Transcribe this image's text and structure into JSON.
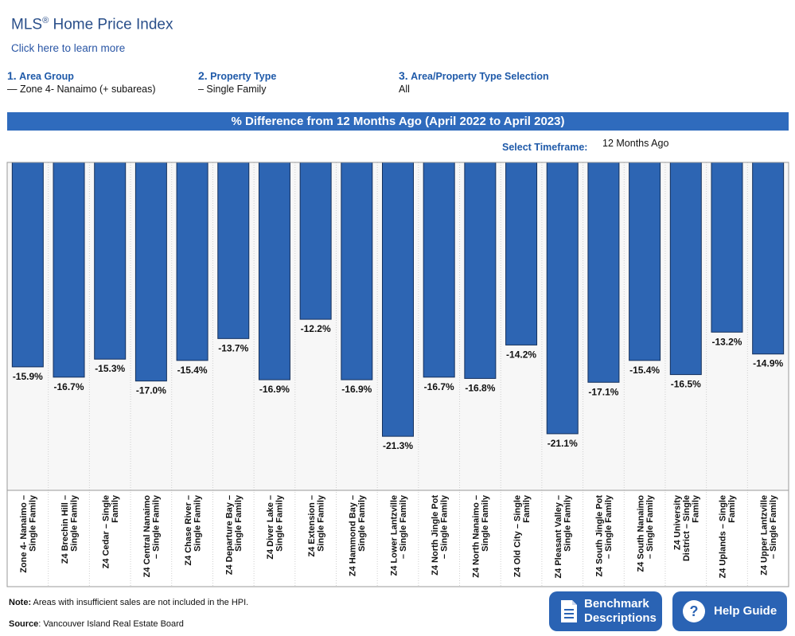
{
  "header": {
    "title": "MLS",
    "title_mark": "®",
    "title_rest": " Home Price Index",
    "learn_more": "Click here to learn more"
  },
  "selectors": [
    {
      "num": "1.",
      "label": "Area Group",
      "value": "— Zone 4- Nanaimo (+ subareas)"
    },
    {
      "num": "2.",
      "label": "Property Type",
      "value": "– Single Family"
    },
    {
      "num": "3.",
      "label": "Area/Property Type Selection",
      "value": "All"
    }
  ],
  "timeframe": {
    "label": "Select Timeframe:",
    "value": "12 Months Ago"
  },
  "footer": {
    "note_label": "Note:",
    "note_text": " Areas with insufficient sales are not included in the HPI.",
    "source_label": "Source",
    "source_text": ": Vancouver Island Real Estate Board"
  },
  "buttons": {
    "benchmark_line1": "Benchmark",
    "benchmark_line2": "Descriptions",
    "help": "Help Guide"
  },
  "colors": {
    "bar": "#2d65b3",
    "banner": "#2f6bbd",
    "accent": "#1f5aa9"
  },
  "icons": {
    "benchmark": "document-icon",
    "help": "question-circle-icon"
  },
  "chart_data": {
    "type": "bar",
    "title": "% Difference from 12 Months Ago (April 2022 to April 2023)",
    "ylim": [
      -25.5,
      0
    ],
    "categories": [
      [
        "Zone 4- Nanaimo –",
        "Single Family"
      ],
      [
        "Z4 Brechin Hill –",
        "Single Family"
      ],
      [
        "Z4 Cedar – Single",
        "Family"
      ],
      [
        "Z4 Central Nanaimo",
        "– Single Family"
      ],
      [
        "Z4 Chase River –",
        "Single Family"
      ],
      [
        "Z4 Departure Bay –",
        "Single Family"
      ],
      [
        "Z4 Diver Lake –",
        "Single Family"
      ],
      [
        "Z4 Extension –",
        "Single Family"
      ],
      [
        "Z4 Hammond Bay –",
        "Single Family"
      ],
      [
        "Z4 Lower Lantzville",
        "– Single Family"
      ],
      [
        "Z4 North Jingle Pot",
        "– Single Family"
      ],
      [
        "Z4 North Nanaimo –",
        "Single Family"
      ],
      [
        "Z4 Old City – Single",
        "Family"
      ],
      [
        "Z4 Pleasant Valley –",
        "Single Family"
      ],
      [
        "Z4 South Jingle Pot",
        "– Single Family"
      ],
      [
        "Z4 South Nanaimo",
        "– Single Family"
      ],
      [
        "Z4 University",
        "District – Single",
        "Family"
      ],
      [
        "Z4 Uplands – Single",
        "Family"
      ],
      [
        "Z4 Upper Lantzville",
        "– Single Family"
      ]
    ],
    "values": [
      -15.9,
      -16.7,
      -15.3,
      -17.0,
      -15.4,
      -13.7,
      -16.9,
      -12.2,
      -16.9,
      -21.3,
      -16.7,
      -16.8,
      -14.2,
      -21.1,
      -17.1,
      -15.4,
      -16.5,
      -13.2,
      -14.9
    ],
    "value_labels": [
      "-15.9%",
      "-16.7%",
      "-15.3%",
      "-17.0%",
      "-15.4%",
      "-13.7%",
      "-16.9%",
      "-12.2%",
      "-16.9%",
      "-21.3%",
      "-16.7%",
      "-16.8%",
      "-14.2%",
      "-21.1%",
      "-17.1%",
      "-15.4%",
      "-16.5%",
      "-13.2%",
      "-14.9%"
    ]
  }
}
